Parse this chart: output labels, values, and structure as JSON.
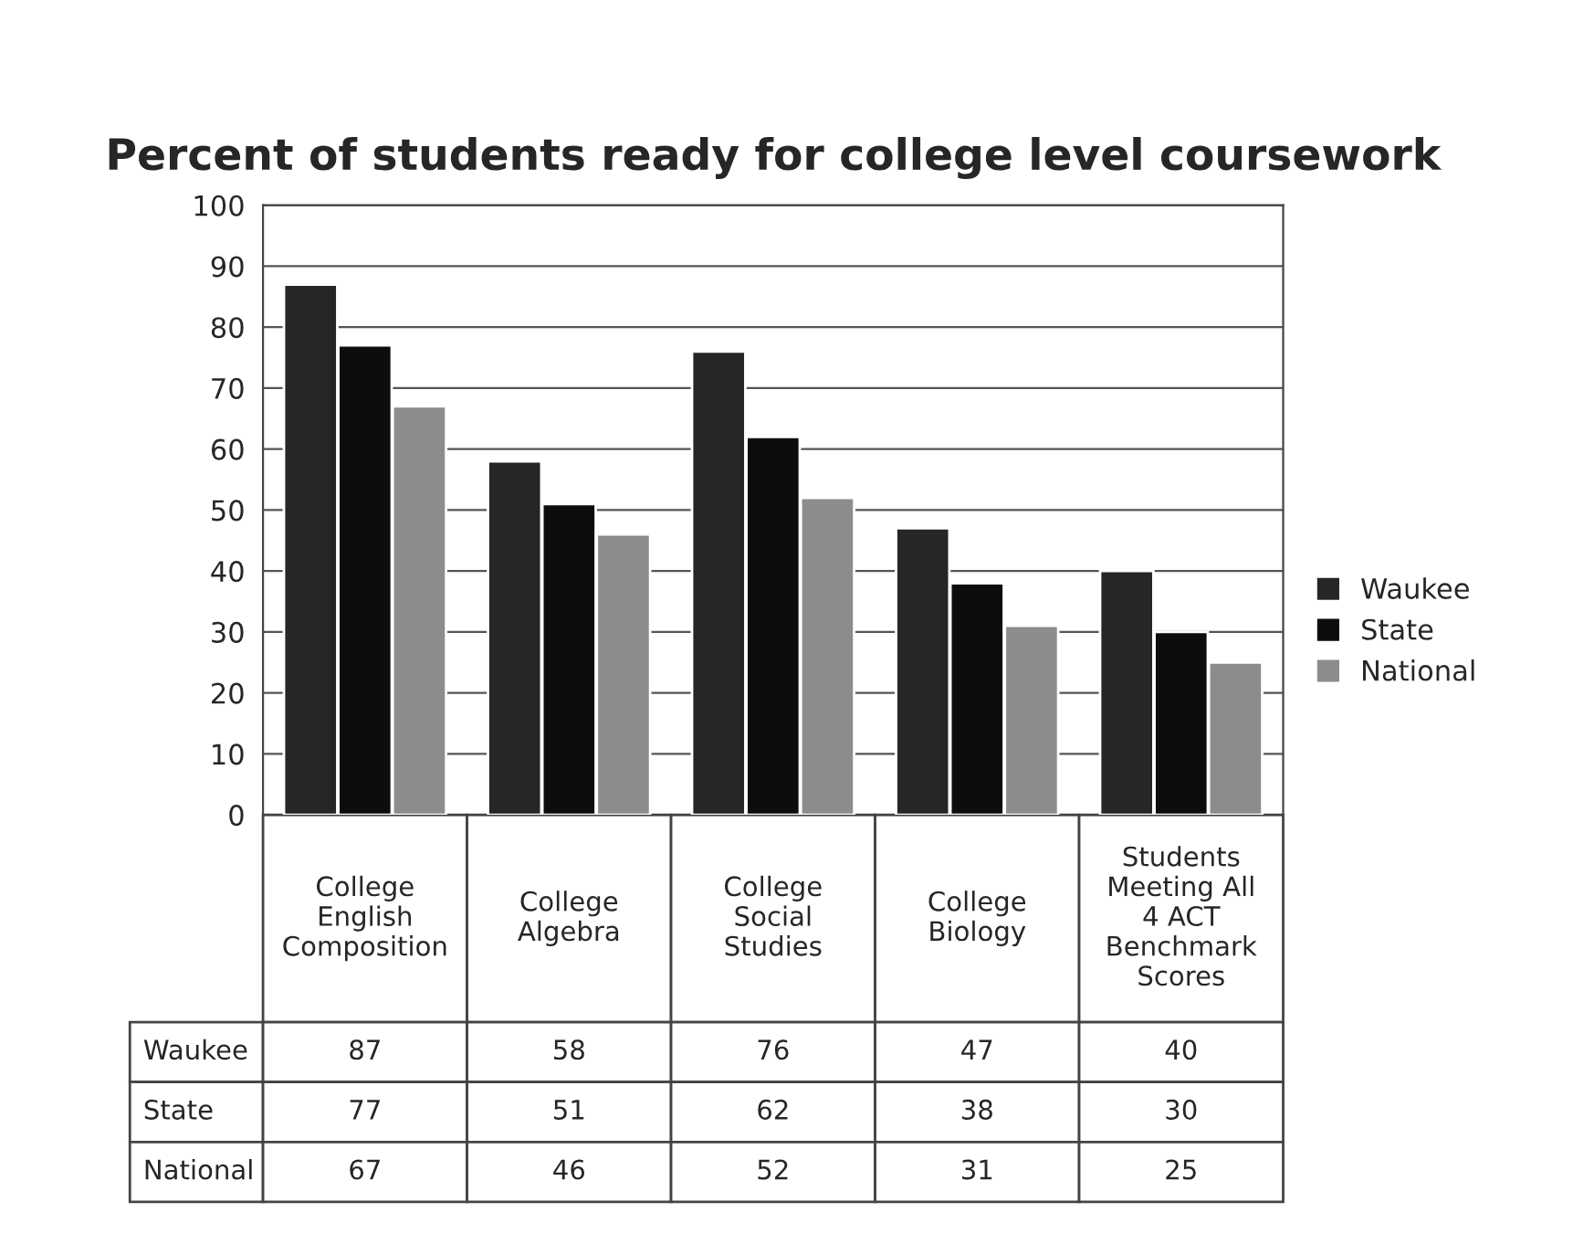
{
  "chart_data": {
    "type": "bar",
    "title": "Percent of students ready for college level coursework",
    "categories": [
      "College English Composition",
      "College Algebra",
      "College Social Studies",
      "College Biology",
      "Students Meeting All 4 ACT Benchmark Scores"
    ],
    "series": [
      {
        "name": "Waukee",
        "color": "#262626",
        "values": [
          87,
          58,
          76,
          47,
          40
        ]
      },
      {
        "name": "State",
        "color": "#0d0d0d",
        "values": [
          77,
          51,
          62,
          38,
          30
        ]
      },
      {
        "name": "National",
        "color": "#8c8c8c",
        "values": [
          67,
          46,
          52,
          31,
          25
        ]
      }
    ],
    "ylim": [
      0,
      100
    ],
    "yticks": [
      0,
      10,
      20,
      30,
      40,
      50,
      60,
      70,
      80,
      90,
      100
    ],
    "grid": "y",
    "legend": "right",
    "data_labels": true
  }
}
